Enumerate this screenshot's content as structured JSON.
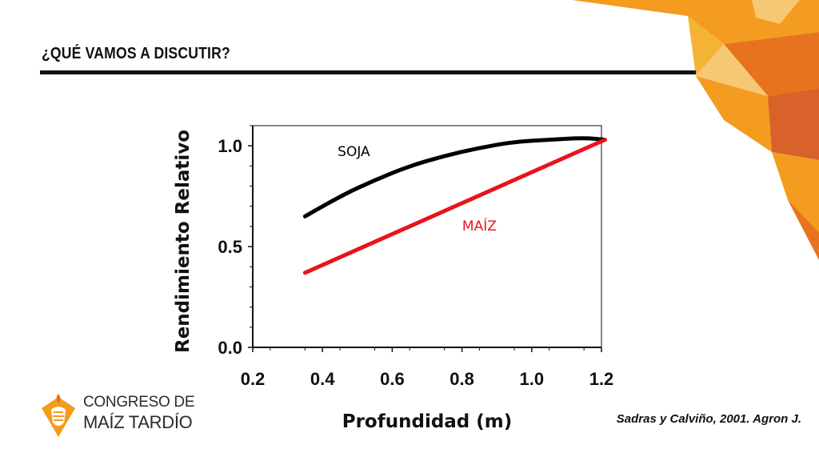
{
  "slide": {
    "title": "¿QUÉ VAMOS A DISCUTIR?",
    "citation": "Sadras y Calviño, 2001. Agron J.",
    "accent_colors": [
      "#f39c1f",
      "#e8731e",
      "#f5b335",
      "#f7c873",
      "#d9622a"
    ]
  },
  "logo": {
    "line1": "CONGRESO DE",
    "line2": "MAÍZ TARDÍO",
    "icon": "corn-cob-icon",
    "color": "#f39c1f"
  },
  "chart_data": {
    "type": "line",
    "xlabel": "Profundidad (m)",
    "ylabel": "Rendimiento Relativo",
    "xlim": [
      0.2,
      1.2
    ],
    "ylim": [
      0.0,
      1.1
    ],
    "xticks": [
      "0.2",
      "0.4",
      "0.6",
      "0.8",
      "1.0",
      "1.2"
    ],
    "yticks": [
      "0.0",
      "0.5",
      "1.0"
    ],
    "series": [
      {
        "name": "SOJA",
        "color": "#000000",
        "x": [
          0.35,
          0.45,
          0.55,
          0.65,
          0.75,
          0.85,
          0.95,
          1.05,
          1.15,
          1.21
        ],
        "y": [
          0.65,
          0.75,
          0.83,
          0.9,
          0.95,
          0.99,
          1.02,
          1.03,
          1.04,
          1.03
        ]
      },
      {
        "name": "MAÍZ",
        "color": "#e8141c",
        "x": [
          0.35,
          1.21
        ],
        "y": [
          0.37,
          1.03
        ]
      }
    ]
  }
}
